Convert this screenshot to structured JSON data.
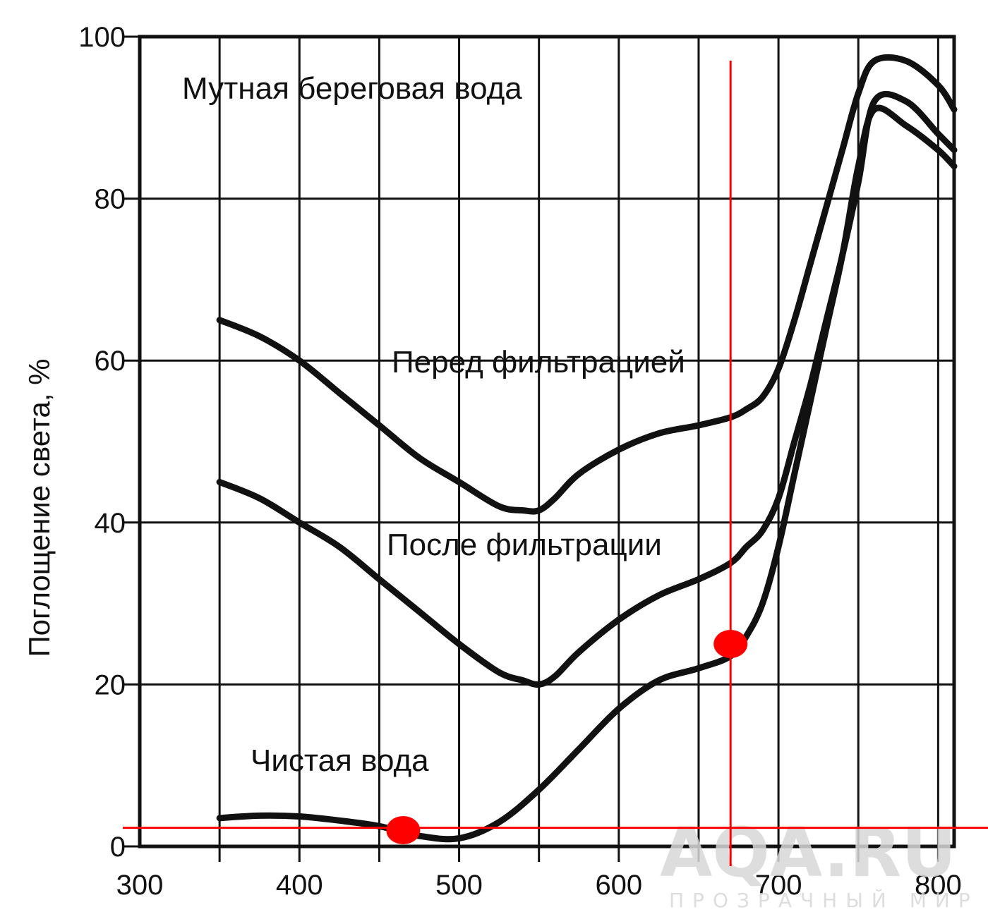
{
  "chart_data": {
    "type": "line",
    "title": "",
    "xlabel": "",
    "ylabel": "Поглощение света, %",
    "xlim": [
      300,
      810
    ],
    "ylim": [
      0,
      100
    ],
    "x_ticks": [
      300,
      400,
      500,
      600,
      700,
      800
    ],
    "y_ticks": [
      0,
      20,
      40,
      60,
      80,
      100
    ],
    "grid": true,
    "x_grid": [
      350,
      400,
      450,
      500,
      550,
      600,
      650,
      700,
      750,
      800
    ],
    "y_grid": [
      0,
      20,
      40,
      60,
      80,
      100
    ],
    "series": [
      {
        "name": "Мутная береговая вода",
        "x": [
          350,
          375,
          400,
          425,
          450,
          475,
          500,
          525,
          540,
          550,
          560,
          575,
          600,
          625,
          650,
          670,
          680,
          690,
          700,
          710,
          720,
          730,
          740,
          750,
          760,
          780,
          800,
          810
        ],
        "y": [
          65,
          63,
          60,
          56,
          52,
          48,
          45,
          42,
          41.5,
          41.5,
          43,
          46,
          49,
          51,
          52,
          53,
          54,
          55.5,
          59,
          65,
          72,
          79,
          86,
          93,
          97,
          97,
          94,
          91
        ]
      },
      {
        "name": "После фильтрации",
        "x": [
          350,
          375,
          400,
          425,
          450,
          475,
          500,
          525,
          540,
          550,
          560,
          575,
          600,
          625,
          650,
          670,
          680,
          690,
          700,
          710,
          720,
          730,
          740,
          750,
          760,
          780,
          800,
          810
        ],
        "y": [
          45,
          43,
          40,
          37,
          33,
          29,
          25,
          21.5,
          20.5,
          20,
          21,
          24,
          28,
          31,
          33,
          35,
          37,
          39,
          43,
          50,
          57,
          65,
          73,
          82,
          92,
          92,
          88,
          86
        ]
      },
      {
        "name": "Чистая вода",
        "x": [
          350,
          375,
          400,
          425,
          450,
          475,
          500,
          525,
          550,
          575,
          600,
          625,
          650,
          670,
          680,
          690,
          700,
          710,
          720,
          730,
          740,
          750,
          760,
          780,
          800,
          810
        ],
        "y": [
          3.5,
          3.8,
          3.7,
          3.2,
          2.5,
          1.3,
          1,
          3,
          7,
          12,
          17,
          20.5,
          22,
          23.5,
          26,
          30,
          37,
          46,
          55,
          64,
          73,
          84,
          91,
          89,
          86,
          84
        ]
      }
    ],
    "annotations": {
      "turbid": "Мутная береговая вода",
      "before": "Перед фильтрацией",
      "after": "После фильтрации",
      "clean": "Чистая вода"
    },
    "markers": [
      {
        "x": 465,
        "y": 2
      },
      {
        "x": 670,
        "y": 25
      }
    ],
    "reference_lines": {
      "horizontal_y": 2.3,
      "vertical_x": 670,
      "color": "#ff0000"
    },
    "watermark": {
      "main": "AQA.RU",
      "sub": "ПРОЗРАЧНЫЙ МИР"
    }
  }
}
